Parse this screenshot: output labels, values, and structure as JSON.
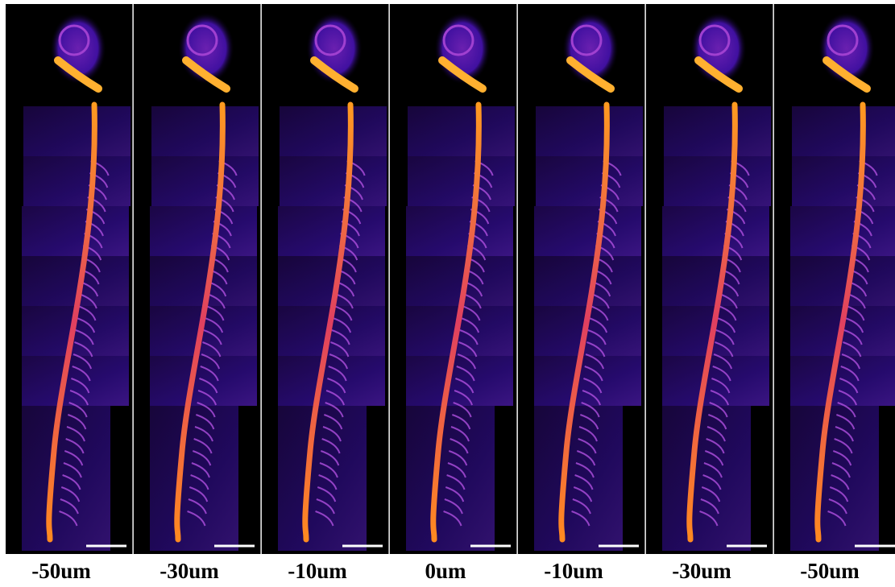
{
  "panels": [
    {
      "label": "-50um"
    },
    {
      "label": "-30um"
    },
    {
      "label": "-10um"
    },
    {
      "label": "0um"
    },
    {
      "label": "-10um"
    },
    {
      "label": "-30um"
    },
    {
      "label": "-50um"
    }
  ]
}
